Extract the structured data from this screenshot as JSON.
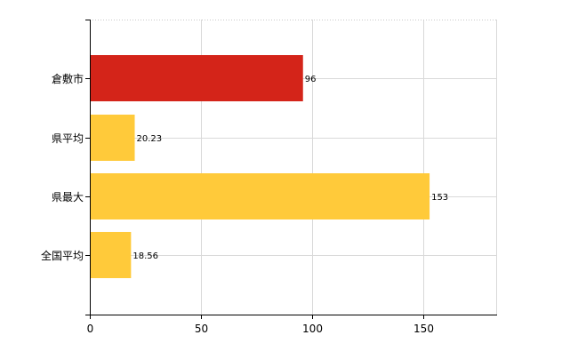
{
  "chart_data": {
    "type": "bar",
    "orientation": "horizontal",
    "categories": [
      "倉敷市",
      "県平均",
      "県最大",
      "全国平均"
    ],
    "values": [
      96,
      20.23,
      153,
      18.56
    ],
    "data_labels": [
      "96",
      "20.23",
      "153",
      "18.56"
    ],
    "bar_colors": [
      "#D42419",
      "#FFCA3A",
      "#FFCA3A",
      "#FFCA3A"
    ],
    "xlim": [
      0,
      183
    ],
    "x_ticks": [
      0,
      50,
      100,
      150
    ],
    "x_tick_labels": [
      "0",
      "50",
      "100",
      "150"
    ],
    "grid": true,
    "legend": "none"
  }
}
